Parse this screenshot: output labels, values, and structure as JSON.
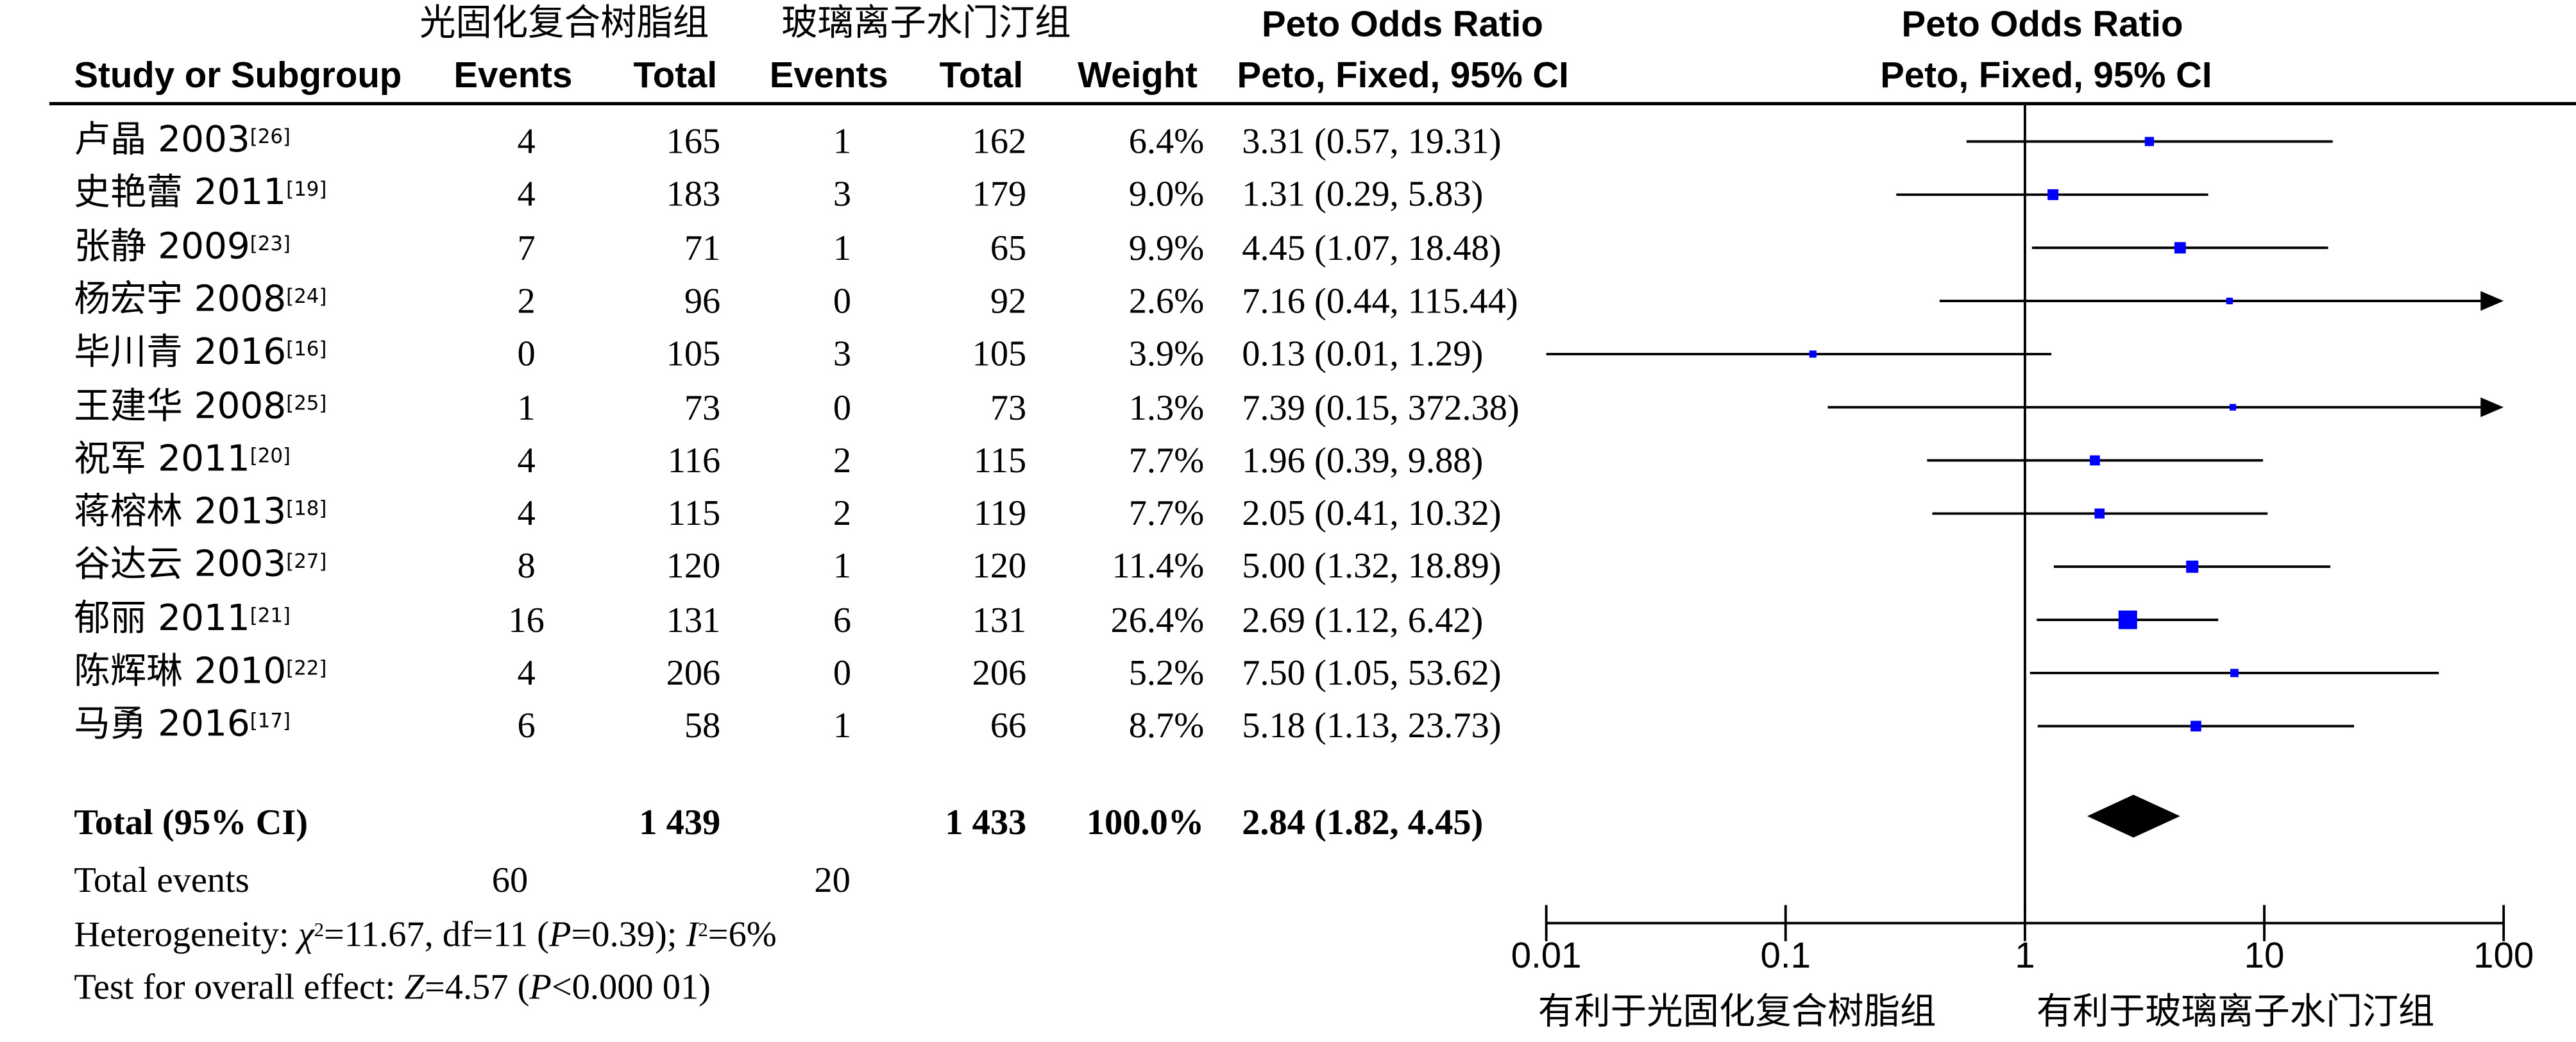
{
  "header": {
    "group1_name": "光固化复合树脂组",
    "group2_name": "玻璃离子水门汀组",
    "effect_title": "Peto Odds Ratio",
    "effect_sub": "Peto, Fixed, 95% CI",
    "plot_title": "Peto Odds Ratio",
    "plot_sub": "Peto, Fixed, 95% CI",
    "col_study": "Study or Subgroup",
    "col_events1": "Events",
    "col_total1": "Total",
    "col_events2": "Events",
    "col_total2": "Total",
    "col_weight": "Weight"
  },
  "studies": [
    {
      "name": "卢晶 2003",
      "ref": "[26]",
      "e1": "4",
      "t1": "165",
      "e2": "1",
      "t2": "162",
      "weight": "6.4%",
      "ci": "3.31 (0.57, 19.31)"
    },
    {
      "name": "史艳蕾 2011",
      "ref": "[19]",
      "e1": "4",
      "t1": "183",
      "e2": "3",
      "t2": "179",
      "weight": "9.0%",
      "ci": "1.31 (0.29, 5.83)"
    },
    {
      "name": "张静 2009",
      "ref": "[23]",
      "e1": "7",
      "t1": "71",
      "e2": "1",
      "t2": "65",
      "weight": "9.9%",
      "ci": "4.45 (1.07, 18.48)"
    },
    {
      "name": "杨宏宇 2008",
      "ref": "[24]",
      "e1": "2",
      "t1": "96",
      "e2": "0",
      "t2": "92",
      "weight": "2.6%",
      "ci": "7.16 (0.44, 115.44)"
    },
    {
      "name": "毕川青 2016",
      "ref": "[16]",
      "e1": "0",
      "t1": "105",
      "e2": "3",
      "t2": "105",
      "weight": "3.9%",
      "ci": "0.13 (0.01, 1.29)"
    },
    {
      "name": "王建华 2008",
      "ref": "[25]",
      "e1": "1",
      "t1": "73",
      "e2": "0",
      "t2": "73",
      "weight": "1.3%",
      "ci": "7.39 (0.15, 372.38)"
    },
    {
      "name": "祝军 2011",
      "ref": "[20]",
      "e1": "4",
      "t1": "116",
      "e2": "2",
      "t2": "115",
      "weight": "7.7%",
      "ci": "1.96 (0.39, 9.88)"
    },
    {
      "name": "蒋榕林 2013",
      "ref": "[18]",
      "e1": "4",
      "t1": "115",
      "e2": "2",
      "t2": "119",
      "weight": "7.7%",
      "ci": "2.05 (0.41, 10.32)"
    },
    {
      "name": "谷达云 2003",
      "ref": "[27]",
      "e1": "8",
      "t1": "120",
      "e2": "1",
      "t2": "120",
      "weight": "11.4%",
      "ci": "5.00 (1.32, 18.89)"
    },
    {
      "name": "郁丽 2011",
      "ref": "[21]",
      "e1": "16",
      "t1": "131",
      "e2": "6",
      "t2": "131",
      "weight": "26.4%",
      "ci": "2.69 (1.12, 6.42)"
    },
    {
      "name": "陈辉琳 2010",
      "ref": "[22]",
      "e1": "4",
      "t1": "206",
      "e2": "0",
      "t2": "206",
      "weight": "5.2%",
      "ci": "7.50 (1.05, 53.62)"
    },
    {
      "name": "马勇 2016",
      "ref": "[17]",
      "e1": "6",
      "t1": "58",
      "e2": "1",
      "t2": "66",
      "weight": "8.7%",
      "ci": "5.18 (1.13, 23.73)"
    }
  ],
  "total": {
    "label": "Total (95% CI)",
    "t1": "1 439",
    "t2": "1 433",
    "weight": "100.0%",
    "ci": "2.84 (1.82, 4.45)",
    "events_label": "Total events",
    "events1": "60",
    "events2": "20"
  },
  "stats": {
    "het_prefix": "Heterogeneity: ",
    "chi_sym": "χ",
    "chi_rest": "=11.67, df=11 (",
    "p_sym": "P",
    "p_rest": "=0.39); ",
    "i_sym": "I",
    "i_rest": "=6%",
    "test_prefix": "Test for overall effect: ",
    "z_sym": "Z",
    "z_rest": "=4.57 (",
    "p2_sym": "P",
    "p2_rest": "<0.000 01)"
  },
  "chart_data": {
    "type": "forest",
    "scale": "log",
    "xlim": [
      0.01,
      100
    ],
    "ticks": [
      "0.01",
      "0.1",
      "1",
      "10",
      "100"
    ],
    "favours_left": "有利于光固化复合树脂组",
    "favours_right": "有利于玻璃离子水门汀组",
    "null_line": 1,
    "colors": {
      "marker": "#0000ff",
      "line": "#000000",
      "diamond": "#000000"
    },
    "points": [
      {
        "or": 3.31,
        "lo": 0.57,
        "hi": 19.31,
        "w": 6.4
      },
      {
        "or": 1.31,
        "lo": 0.29,
        "hi": 5.83,
        "w": 9.0
      },
      {
        "or": 4.45,
        "lo": 1.07,
        "hi": 18.48,
        "w": 9.9
      },
      {
        "or": 7.16,
        "lo": 0.44,
        "hi": 115.44,
        "w": 2.6
      },
      {
        "or": 0.13,
        "lo": 0.01,
        "hi": 1.29,
        "w": 3.9
      },
      {
        "or": 7.39,
        "lo": 0.15,
        "hi": 372.38,
        "w": 1.3
      },
      {
        "or": 1.96,
        "lo": 0.39,
        "hi": 9.88,
        "w": 7.7
      },
      {
        "or": 2.05,
        "lo": 0.41,
        "hi": 10.32,
        "w": 7.7
      },
      {
        "or": 5.0,
        "lo": 1.32,
        "hi": 18.89,
        "w": 11.4
      },
      {
        "or": 2.69,
        "lo": 1.12,
        "hi": 6.42,
        "w": 26.4
      },
      {
        "or": 7.5,
        "lo": 1.05,
        "hi": 53.62,
        "w": 5.2
      },
      {
        "or": 5.18,
        "lo": 1.13,
        "hi": 23.73,
        "w": 8.7
      }
    ],
    "pooled": {
      "or": 2.84,
      "lo": 1.82,
      "hi": 4.45
    }
  }
}
